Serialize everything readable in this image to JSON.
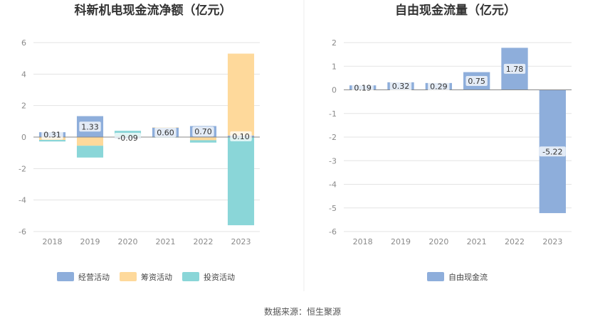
{
  "colors": {
    "operating": "#8eaedb",
    "financing": "#fed99b",
    "investing": "#8ad6d8",
    "freecash": "#8eaedb",
    "grid": "#e3e3e3",
    "axis": "#888888",
    "divider": "#eeeeee"
  },
  "source": "数据来源：恒生聚源",
  "chart_data": [
    {
      "type": "bar",
      "title": "科新机电现金流净额（亿元）",
      "categories": [
        "2018",
        "2019",
        "2020",
        "2021",
        "2022",
        "2023"
      ],
      "series": [
        {
          "name": "经营活动",
          "values": [
            0.31,
            1.33,
            -0.09,
            0.6,
            0.7,
            0.1
          ]
        },
        {
          "name": "筹资活动",
          "values": [
            -0.18,
            -0.55,
            0.02,
            0.02,
            -0.2,
            5.2
          ]
        },
        {
          "name": "投资活动",
          "values": [
            -0.1,
            -0.75,
            0.38,
            -0.03,
            -0.15,
            -5.6
          ]
        }
      ],
      "data_labels": [
        "0.31",
        "1.33",
        "-0.09",
        "0.60",
        "0.70",
        "0.10"
      ],
      "ylim": [
        -6,
        6
      ],
      "yticks": [
        "6",
        "4",
        "2",
        "0",
        "-2",
        "-4",
        "-6"
      ],
      "stacked": true,
      "legend": "bottom"
    },
    {
      "type": "bar",
      "title": "自由现金流量（亿元）",
      "categories": [
        "2018",
        "2019",
        "2020",
        "2021",
        "2022",
        "2023"
      ],
      "series": [
        {
          "name": "自由现金流",
          "values": [
            0.19,
            0.32,
            0.29,
            0.75,
            1.78,
            -5.22
          ]
        }
      ],
      "data_labels": [
        "0.19",
        "0.32",
        "0.29",
        "0.75",
        "1.78",
        "-5.22"
      ],
      "ylim": [
        -6,
        2
      ],
      "yticks": [
        "2",
        "1",
        "0",
        "-1",
        "-2",
        "-3",
        "-4",
        "-5",
        "-6"
      ],
      "legend": "bottom"
    }
  ]
}
